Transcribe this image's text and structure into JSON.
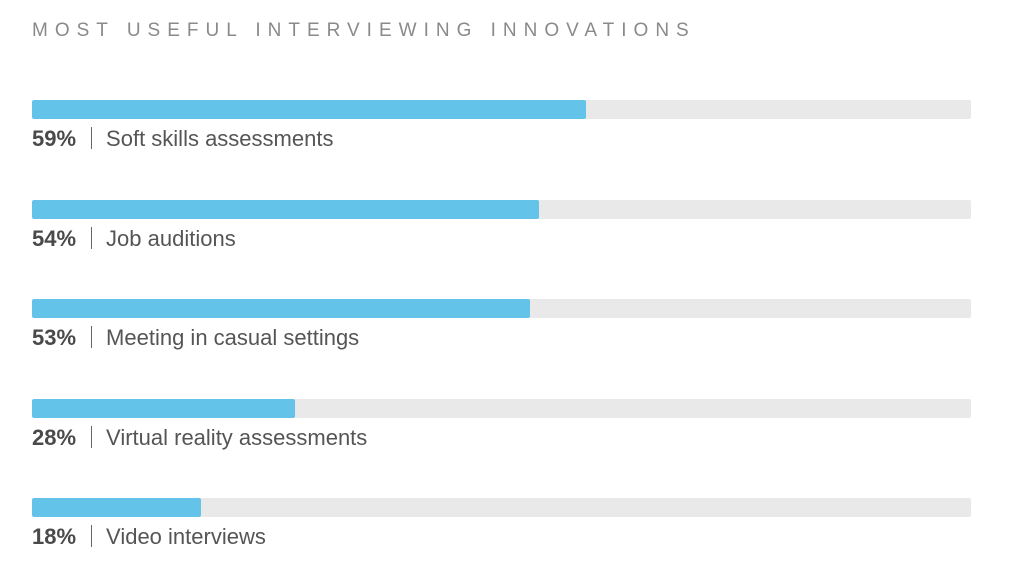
{
  "chart_data": {
    "type": "bar",
    "orientation": "horizontal",
    "title": "MOST USEFUL INTERVIEWING INNOVATIONS",
    "categories": [
      "Soft skills assessments",
      "Job auditions",
      "Meeting in casual settings",
      "Virtual reality assessments",
      "Video interviews"
    ],
    "values": [
      59,
      54,
      53,
      28,
      18
    ],
    "value_labels": [
      "59%",
      "54%",
      "53%",
      "28%",
      "18%"
    ],
    "separator": "|",
    "xlim": [
      0,
      100
    ],
    "unit": "%",
    "grid": false,
    "legend": "none",
    "colors": {
      "bar": "#64c3e8",
      "track": "#e9e9e9",
      "title": "#8a8a8a",
      "text": "#555555"
    }
  }
}
